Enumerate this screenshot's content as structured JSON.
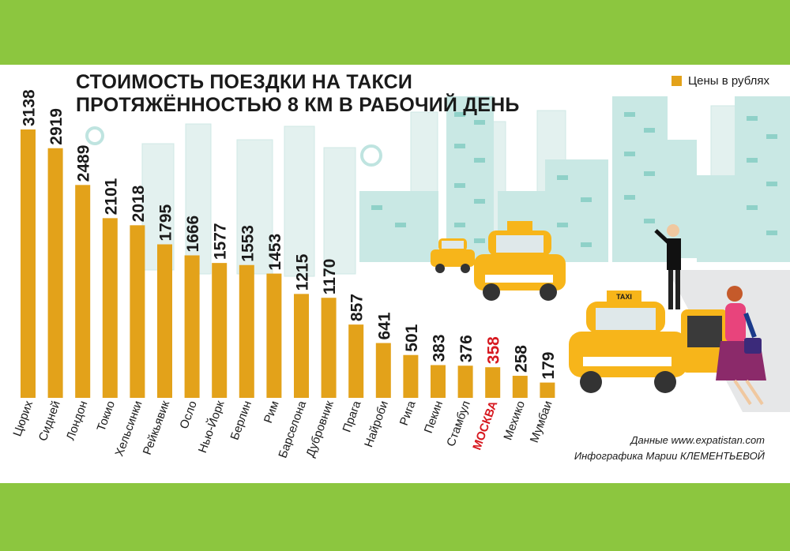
{
  "chart_data": {
    "type": "bar",
    "title_lines": [
      "СТОИМОСТЬ ПОЕЗДКИ НА ТАКСИ",
      "ПРОТЯЖЁННОСТЬЮ 8 КМ В РАБОЧИЙ ДЕНЬ"
    ],
    "legend": "Цены в рублях",
    "categories": [
      "Цюрих",
      "Сидней",
      "Лондон",
      "Токио",
      "Хельсинки",
      "Рейкьявик",
      "Осло",
      "Нью-Йорк",
      "Берлин",
      "Рим",
      "Барселона",
      "Дубровник",
      "Прага",
      "Найроби",
      "Рига",
      "Пекин",
      "Стамбул",
      "МОСКВА",
      "Мехико",
      "Мумбаи"
    ],
    "values": [
      3138,
      2919,
      2489,
      2101,
      2018,
      1795,
      1666,
      1577,
      1553,
      1453,
      1215,
      1170,
      857,
      641,
      501,
      383,
      376,
      358,
      258,
      179
    ],
    "highlight": "МОСКВА",
    "ylim": [
      0,
      3138
    ],
    "grid": false,
    "legend_position": "top-right"
  },
  "colors": {
    "bar": "#e3a21a",
    "highlight_text": "#d71920",
    "frame": "#8cc63f",
    "city": "#bfe4e0"
  },
  "source": {
    "line1": "Данные www.expatistan.com",
    "line2": "Инфографика Марии КЛЕМЕНТЬЕВОЙ"
  },
  "taxi_sign": "TAXI"
}
